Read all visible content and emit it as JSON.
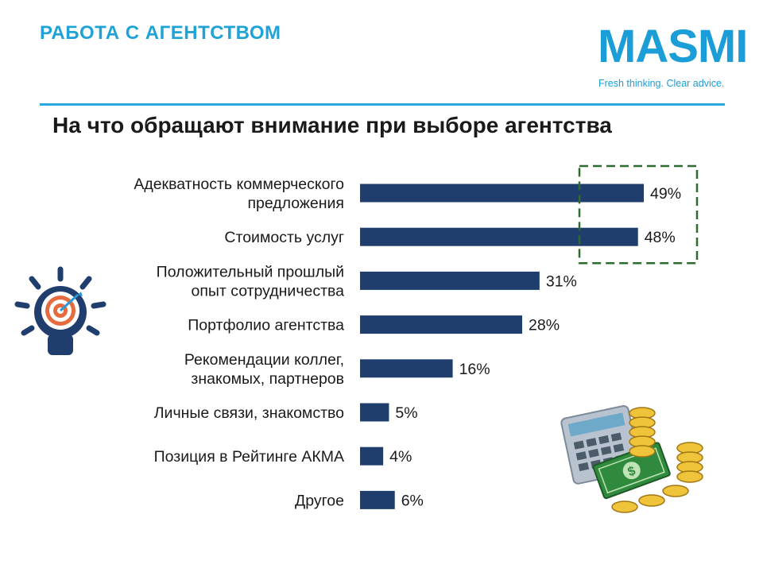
{
  "header": {
    "section_title": "РАБОТА С АГЕНТСТВОМ"
  },
  "logo": {
    "word": "MASMI",
    "tagline": "Fresh thinking. Clear advice."
  },
  "colors": {
    "accent": "#1fa3d6",
    "bar": "#1f3e6e",
    "highlight": "#2e6b2e"
  },
  "chart_data": {
    "type": "bar",
    "orientation": "horizontal",
    "title": "На что обращают внимание при выборе агентства",
    "categories": [
      [
        "Адекватность коммерческого",
        "предложения"
      ],
      [
        "Стоимость услуг"
      ],
      [
        "Положительный прошлый",
        "опыт сотрудничества"
      ],
      [
        "Портфолио агентства"
      ],
      [
        "Рекомендации коллег,",
        "знакомых, партнеров"
      ],
      [
        "Личные связи, знакомство"
      ],
      [
        "Позиция в Рейтинге АКМА"
      ],
      [
        "Другое"
      ]
    ],
    "values": [
      49,
      48,
      31,
      28,
      16,
      5,
      4,
      6
    ],
    "value_labels": [
      "49%",
      "48%",
      "31%",
      "28%",
      "16%",
      "5%",
      "4%",
      "6%"
    ],
    "unit": "%",
    "xlim": [
      0,
      49
    ],
    "grid": false,
    "highlighted_categories": [
      0,
      1
    ]
  },
  "decorations": {
    "left_icon": "lightbulb-target-icon",
    "right_icon": "calculator-money-coins-icon"
  }
}
